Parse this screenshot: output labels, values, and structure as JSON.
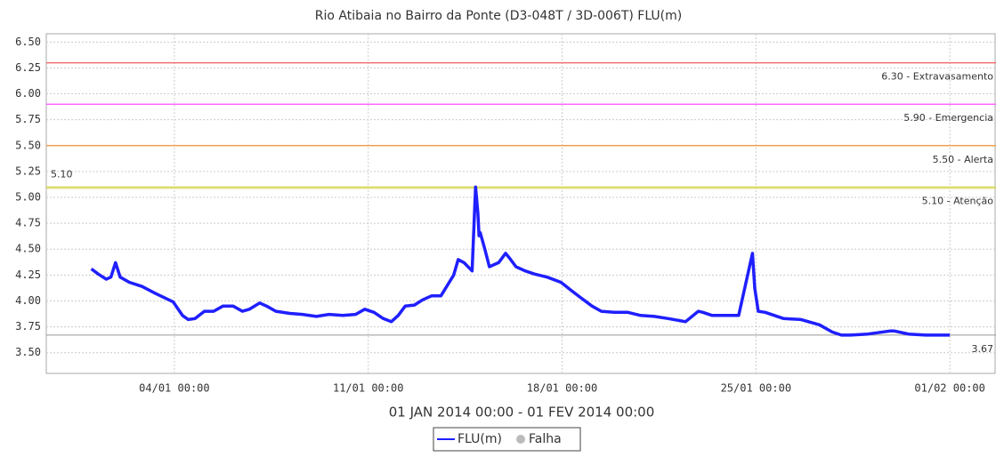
{
  "chart_data": {
    "type": "line",
    "title": "Rio Atibaia no Bairro da Ponte (D3-048T / 3D-006T) FLU(m)",
    "xlabel": "01 JAN 2014 00:00 - 01 FEV 2014 00:00",
    "x": [
      "2014-01-01T00:00",
      "2014-01-01T06:00",
      "2014-01-01T13:00",
      "2014-01-01T17:00",
      "2014-01-01T21:00",
      "2014-01-02T01:00",
      "2014-01-02T09:00",
      "2014-01-02T20:00",
      "2014-01-03T08:00",
      "2014-01-03T23:00",
      "2014-01-04T07:00",
      "2014-01-04T12:00",
      "2014-01-04T18:00",
      "2014-01-05T02:00",
      "2014-01-05T10:00",
      "2014-01-05T18:00",
      "2014-01-06T03:00",
      "2014-01-06T11:00",
      "2014-01-06T17:00",
      "2014-01-07T02:00",
      "2014-01-07T08:00",
      "2014-01-07T16:00",
      "2014-01-08T04:00",
      "2014-01-08T15:00",
      "2014-01-09T03:00",
      "2014-01-09T14:00",
      "2014-01-10T02:00",
      "2014-01-10T13:00",
      "2014-01-10T21:00",
      "2014-01-11T05:00",
      "2014-01-11T13:00",
      "2014-01-11T20:00",
      "2014-01-12T02:00",
      "2014-01-12T08:00",
      "2014-01-12T16:00",
      "2014-01-12T23:00",
      "2014-01-13T07:00",
      "2014-01-13T15:00",
      "2014-01-14T02:00",
      "2014-01-14T06:00",
      "2014-01-14T11:00",
      "2014-01-14T18:00",
      "2014-01-14T21:00",
      "2014-01-14T23:00",
      "2014-01-15T00:00",
      "2014-01-15T01:00",
      "2014-01-15T05:00",
      "2014-01-15T09:00",
      "2014-01-15T17:00",
      "2014-01-15T23:00",
      "2014-01-16T02:00",
      "2014-01-16T08:00",
      "2014-01-16T16:00",
      "2014-01-17T00:00",
      "2014-01-17T11:00",
      "2014-01-17T23:00",
      "2014-01-18T07:00",
      "2014-01-18T14:00",
      "2014-01-19T02:00",
      "2014-01-19T10:00",
      "2014-01-19T21:00",
      "2014-01-20T09:00",
      "2014-01-20T20:00",
      "2014-01-21T08:00",
      "2014-01-21T20:00",
      "2014-01-22T11:00",
      "2014-01-22T22:00",
      "2014-01-23T02:00",
      "2014-01-23T10:00",
      "2014-01-24T09:00",
      "2014-01-24T21:00",
      "2014-01-24T23:00",
      "2014-01-25T02:00",
      "2014-01-25T08:00",
      "2014-01-26T00:00",
      "2014-01-26T15:00",
      "2014-01-27T07:00",
      "2014-01-27T18:00",
      "2014-01-28T02:00",
      "2014-01-28T10:00",
      "2014-01-29T01:00",
      "2014-01-29T20:00",
      "2014-01-30T00:00",
      "2014-01-30T12:00",
      "2014-01-31T03:00",
      "2014-02-01T00:00"
    ],
    "series": [
      {
        "name": "FLU(m)",
        "color": "#1f1fff",
        "values": [
          4.31,
          4.26,
          4.21,
          4.23,
          4.37,
          4.23,
          4.18,
          4.14,
          4.07,
          3.99,
          3.86,
          3.82,
          3.83,
          3.9,
          3.9,
          3.95,
          3.95,
          3.9,
          3.92,
          3.98,
          3.95,
          3.9,
          3.88,
          3.87,
          3.85,
          3.87,
          3.86,
          3.87,
          3.92,
          3.89,
          3.83,
          3.8,
          3.86,
          3.95,
          3.96,
          4.01,
          4.05,
          4.05,
          4.25,
          4.4,
          4.37,
          4.29,
          5.1,
          4.85,
          4.63,
          4.66,
          4.5,
          4.33,
          4.37,
          4.46,
          4.42,
          4.33,
          4.29,
          4.26,
          4.23,
          4.18,
          4.11,
          4.05,
          3.95,
          3.9,
          3.89,
          3.89,
          3.86,
          3.85,
          3.83,
          3.8,
          3.9,
          3.89,
          3.86,
          3.86,
          4.46,
          4.12,
          3.9,
          3.89,
          3.83,
          3.82,
          3.77,
          3.7,
          3.67,
          3.67,
          3.68,
          3.71,
          3.71,
          3.68,
          3.67,
          3.67
        ]
      }
    ],
    "failure_legend": {
      "name": "Falha",
      "color": "#bbbbbb"
    },
    "thresholds": [
      {
        "value": 6.3,
        "label": "6.30 - Extravasamento",
        "color": "#f07070"
      },
      {
        "value": 5.9,
        "label": "5.90 - Emergencia",
        "color": "#ff66ff"
      },
      {
        "value": 5.5,
        "label": "5.50 - Alerta",
        "color": "#f0a050"
      },
      {
        "value": 5.1,
        "label": "5.10 - Atenção",
        "color": "#d8d860"
      }
    ],
    "max_marker": {
      "value": 5.1,
      "label": "5.10",
      "color": "#d8d860"
    },
    "min_marker": {
      "value": 3.67,
      "label": "3.67",
      "color": "#999999"
    },
    "xlim": [
      "2013-12-30T09:00",
      "2014-02-02T16:00"
    ],
    "xticks": [
      {
        "value": "2014-01-04T00:00",
        "label": "04/01 00:00"
      },
      {
        "value": "2014-01-11T00:00",
        "label": "11/01 00:00"
      },
      {
        "value": "2014-01-18T00:00",
        "label": "18/01 00:00"
      },
      {
        "value": "2014-01-25T00:00",
        "label": "25/01 00:00"
      },
      {
        "value": "2014-02-01T00:00",
        "label": "01/02 00:00"
      }
    ],
    "ylim": [
      3.3,
      6.58
    ],
    "yticks": [
      {
        "value": 3.5,
        "label": "3.50"
      },
      {
        "value": 3.75,
        "label": "3.75"
      },
      {
        "value": 4,
        "label": "4.00"
      },
      {
        "value": 4.25,
        "label": "4.25"
      },
      {
        "value": 4.5,
        "label": "4.50"
      },
      {
        "value": 4.75,
        "label": "4.75"
      },
      {
        "value": 5,
        "label": "5.00"
      },
      {
        "value": 5.25,
        "label": "5.25"
      },
      {
        "value": 5.5,
        "label": "5.50"
      },
      {
        "value": 5.75,
        "label": "5.75"
      },
      {
        "value": 6,
        "label": "6.00"
      },
      {
        "value": 6.25,
        "label": "6.25"
      },
      {
        "value": 6.5,
        "label": "6.50"
      }
    ],
    "grid": true
  }
}
